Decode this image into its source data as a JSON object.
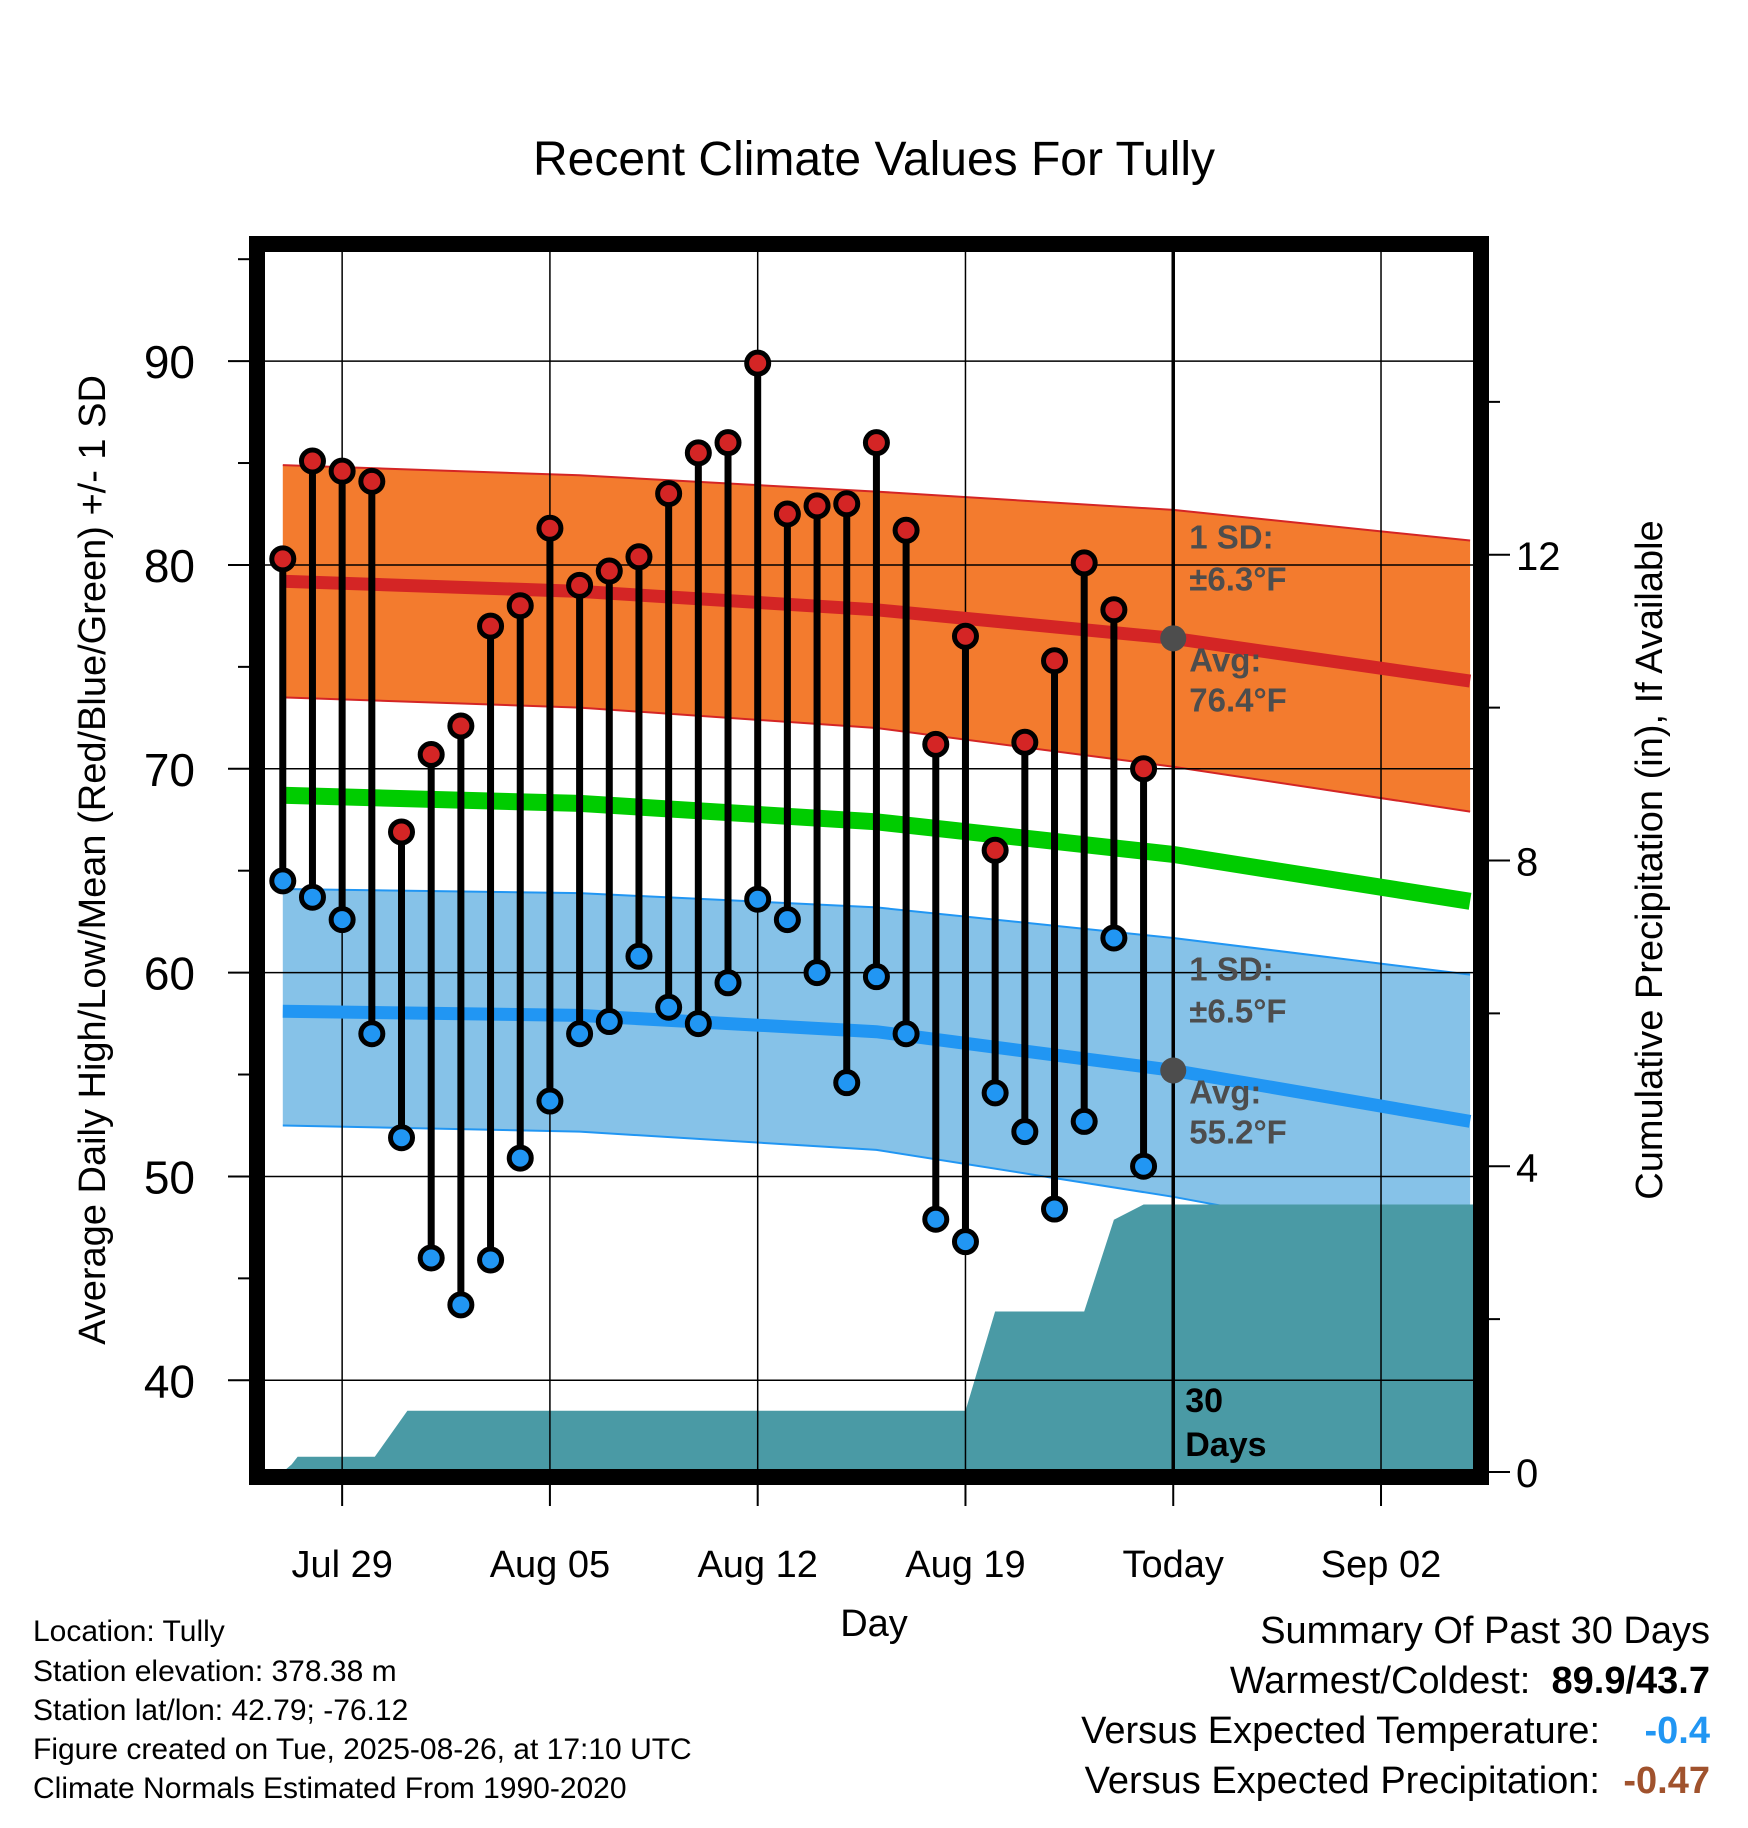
{
  "chart_data": {
    "type": "line",
    "title": "Recent Climate Values For Tully",
    "xlabel": "Day",
    "ylabel": "Average Daily High/Low/Mean (Red/Blue/Green) +/- 1 SD",
    "y2label": "Cumulative Precipitation (in), If Available",
    "ylim": [
      35.5,
      95.5
    ],
    "y2lim": [
      0,
      16
    ],
    "y_ticks": [
      40,
      50,
      60,
      70,
      80,
      90
    ],
    "y2_ticks": [
      0,
      4,
      8,
      12
    ],
    "x_tick_labels": [
      "Jul 29",
      "Aug 05",
      "Aug 12",
      "Aug 19",
      "Today",
      "Sep 02"
    ],
    "x_tick_days": [
      2,
      9,
      16,
      23,
      30,
      37
    ],
    "xlim": [
      -0.7,
      40.2
    ],
    "days_axis_unit": "days since Jul 27",
    "grid": true,
    "today_marker": "30 Days",
    "series": [
      {
        "name": "Daily High",
        "color": "#d42525",
        "values": [
          80.3,
          85.1,
          84.6,
          84.1,
          66.9,
          70.7,
          72.1,
          77.0,
          78.0,
          81.8,
          79.0,
          79.7,
          80.4,
          83.5,
          85.5,
          86.0,
          89.9,
          82.5,
          82.9,
          83.0,
          86.0,
          81.7,
          71.2,
          76.5,
          66.0,
          71.3,
          75.3,
          80.1,
          77.8,
          70.0
        ]
      },
      {
        "name": "Daily Low",
        "color": "#2196f3",
        "values": [
          64.5,
          63.7,
          62.6,
          57.0,
          51.9,
          46.0,
          43.7,
          45.9,
          50.9,
          53.7,
          57.0,
          57.6,
          60.8,
          58.3,
          57.5,
          59.5,
          63.6,
          62.6,
          60.0,
          54.6,
          59.8,
          57.0,
          47.9,
          46.8,
          54.1,
          52.2,
          48.4,
          52.7,
          61.7,
          50.5
        ]
      }
    ],
    "normals": {
      "high_avg": [
        79.2,
        78.7,
        77.8,
        76.4,
        74.3
      ],
      "high_sd_upper": [
        84.9,
        84.4,
        83.6,
        82.7,
        81.2
      ],
      "high_sd_lower": [
        73.5,
        73.0,
        72.0,
        70.1,
        67.9
      ],
      "mean_avg": [
        68.7,
        68.3,
        67.4,
        65.8,
        63.5
      ],
      "low_avg": [
        58.1,
        57.9,
        57.1,
        55.2,
        52.7
      ],
      "low_sd_upper": [
        64.1,
        63.9,
        63.2,
        61.7,
        59.9
      ],
      "low_sd_lower": [
        52.5,
        52.2,
        51.3,
        49.0,
        46.3
      ],
      "normal_days": [
        0,
        10,
        20,
        30,
        40
      ]
    },
    "high_annotation": {
      "sd": "1 SD:",
      "sd_value": "±6.3°F",
      "avg": "Avg:",
      "avg_value": "76.4°F",
      "today_avg": 76.4
    },
    "low_annotation": {
      "sd": "1 SD:",
      "sd_value": "±6.5°F",
      "avg": "Avg:",
      "avg_value": "55.2°F",
      "today_avg": 55.2
    },
    "precip_days": [
      0,
      0.3,
      0.5,
      3.1,
      4.2,
      7.0,
      20.0,
      23.0,
      24.0,
      27.0,
      28.0,
      29.0,
      40.2
    ],
    "precip_values": [
      0,
      0.1,
      0.2,
      0.2,
      0.8,
      0.8,
      0.8,
      0.8,
      2.1,
      2.1,
      3.3,
      3.5,
      3.5
    ],
    "precip_color": "#4a9aa5"
  },
  "info": {
    "location": "Location: Tully",
    "elevation": "Station elevation: 378.38 m",
    "latlon": "Station lat/lon: 42.79; -76.12",
    "created": "Figure created on Tue, 2025-08-26, at 17:10 UTC",
    "normals_note": "Climate Normals Estimated From 1990-2020"
  },
  "summary": {
    "title": "Summary Of Past 30 Days",
    "warmest_label": "Warmest/Coldest:",
    "warmest": "89.9",
    "slash": "/",
    "coldest": "43.7",
    "temp_label": "Versus Expected Temperature:",
    "temp_value": "-0.4",
    "temp_color": "#2196f3",
    "precip_label": "Versus Expected Precipitation:",
    "precip_value": "-0.47",
    "precip_color": "#a0522d"
  }
}
